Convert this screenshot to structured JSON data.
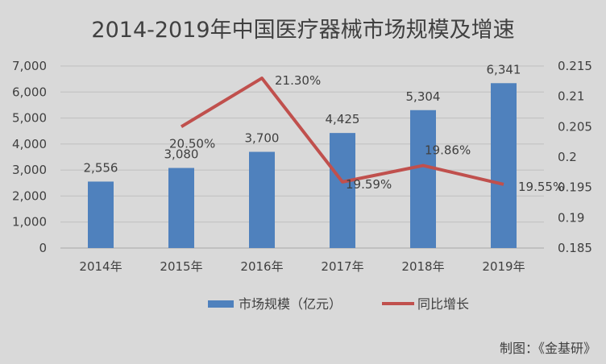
{
  "chart_data": {
    "type": "bar",
    "title": "2014-2019年中国医疗器械市场规模及增速",
    "categories": [
      "2014年",
      "2015年",
      "2016年",
      "2017年",
      "2018年",
      "2019年"
    ],
    "series": [
      {
        "name": "市场规模（亿元）",
        "type": "bar",
        "axis": "left",
        "color": "#4f81bd",
        "values": [
          2556,
          3080,
          3700,
          4425,
          5304,
          6341
        ],
        "labels": [
          "2,556",
          "3,080",
          "3,700",
          "4,425",
          "5,304",
          "6,341"
        ]
      },
      {
        "name": "同比增长",
        "type": "line",
        "axis": "right",
        "color": "#c0504d",
        "values": [
          null,
          0.205,
          0.213,
          0.1959,
          0.1986,
          0.1955
        ],
        "labels": [
          "",
          "20.50%",
          "21.30%",
          "19.59%",
          "19.86%",
          "19.55%"
        ]
      }
    ],
    "y_left": {
      "min": 0,
      "max": 7000,
      "step": 1000,
      "ticks": [
        "0",
        "1,000",
        "2,000",
        "3,000",
        "4,000",
        "5,000",
        "6,000",
        "7,000"
      ]
    },
    "y_right": {
      "min": 0.185,
      "max": 0.215,
      "step": 0.005,
      "ticks": [
        "0.185",
        "0.19",
        "0.195",
        "0.2",
        "0.205",
        "0.21",
        "0.215"
      ]
    },
    "grid": true,
    "legend_position": "bottom"
  },
  "source_note": "制图：《金基研》"
}
